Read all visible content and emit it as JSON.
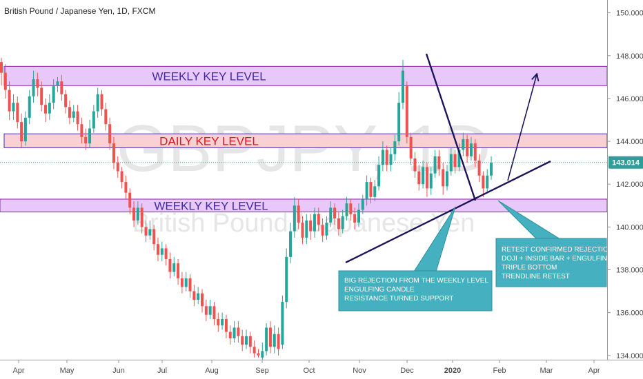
{
  "header": {
    "title": "British Pound / Japanese Yen, 1D, FXCM"
  },
  "watermark": {
    "symbol": "GBPJPY, 1D",
    "name": "British Pound / Japanese Yen"
  },
  "price_badge": {
    "value": "143.014",
    "color": "#2f9e9a"
  },
  "colors": {
    "up": "#26a69a",
    "down": "#ef5350",
    "weekly_fill": "#e8c8f8",
    "weekly_border": "#8e24aa",
    "daily_fill": "#f9d0d4",
    "daily_border": "#3f2faa",
    "line": "#1a1458",
    "callout": "#45b0c0"
  },
  "zones": [
    {
      "label": "WEEKLY KEY LEVEL",
      "kind": "weekly",
      "from": 146.6,
      "to": 147.5
    },
    {
      "label": "DAILY KEY LEVEL",
      "kind": "daily",
      "from": 143.7,
      "to": 144.35
    },
    {
      "label": "WEEKLY KEY LEVEL",
      "kind": "weekly",
      "from": 140.7,
      "to": 141.3
    }
  ],
  "callouts": [
    {
      "lines": [
        "BIG REJECTION FROM THE WEEKLY LEVEL",
        "ENGULFING CANDLE",
        "RESISTANCE TURNED SUPPORT"
      ]
    },
    {
      "lines": [
        "RETEST CONFIRMED REJECTION",
        "DOJI + INSIDE BAR + ENGULFING",
        "TRIPLE BOTTOM",
        "TRENDLINE RETEST"
      ]
    }
  ],
  "chart_data": {
    "type": "candlestick",
    "title": "British Pound / Japanese Yen, 1D, FXCM",
    "ylim": [
      133.8,
      150.6
    ],
    "y_ticks": [
      "134.000",
      "136.000",
      "138.000",
      "140.000",
      "142.000",
      "144.000",
      "146.000",
      "148.000",
      "150.000"
    ],
    "x_ticks": [
      "Apr",
      "May",
      "Jun",
      "Jul",
      "Aug",
      "Sep",
      "Oct",
      "Nov",
      "Dec",
      "2020",
      "Feb",
      "Mar",
      "Apr"
    ],
    "last_price": 143.014,
    "candles": [
      [
        147.7,
        147.2,
        147.9,
        146.6
      ],
      [
        147.2,
        146.4,
        147.6,
        146.0
      ],
      [
        146.4,
        145.4,
        146.8,
        145.0
      ],
      [
        145.4,
        145.8,
        146.2,
        145.0
      ],
      [
        145.8,
        144.9,
        146.1,
        144.6
      ],
      [
        144.9,
        144.0,
        145.3,
        143.7
      ],
      [
        144.0,
        145.1,
        145.4,
        143.8
      ],
      [
        145.1,
        146.1,
        146.4,
        144.8
      ],
      [
        146.1,
        146.9,
        147.3,
        145.8
      ],
      [
        146.9,
        146.5,
        147.2,
        146.1
      ],
      [
        146.5,
        145.7,
        146.8,
        145.4
      ],
      [
        145.7,
        145.3,
        146.0,
        144.9
      ],
      [
        145.3,
        145.8,
        146.2,
        145.0
      ],
      [
        145.8,
        146.6,
        146.9,
        145.5
      ],
      [
        146.6,
        146.8,
        147.0,
        146.3
      ],
      [
        146.8,
        146.2,
        147.1,
        145.9
      ],
      [
        146.2,
        145.6,
        146.4,
        145.3
      ],
      [
        145.6,
        145.1,
        145.9,
        144.8
      ],
      [
        145.1,
        145.4,
        145.7,
        144.9
      ],
      [
        145.4,
        144.8,
        145.7,
        144.5
      ],
      [
        144.8,
        144.2,
        145.1,
        143.9
      ],
      [
        144.2,
        143.9,
        144.6,
        143.6
      ],
      [
        143.9,
        144.6,
        145.0,
        143.7
      ],
      [
        144.6,
        145.4,
        145.7,
        144.4
      ],
      [
        145.4,
        146.2,
        146.5,
        145.1
      ],
      [
        146.2,
        145.5,
        146.4,
        145.2
      ],
      [
        145.5,
        144.8,
        145.8,
        144.5
      ],
      [
        144.8,
        143.9,
        145.1,
        143.6
      ],
      [
        143.9,
        143.0,
        144.2,
        142.7
      ],
      [
        143.0,
        142.6,
        143.3,
        142.3
      ],
      [
        142.6,
        142.1,
        142.8,
        141.8
      ],
      [
        142.1,
        141.6,
        142.4,
        141.3
      ],
      [
        141.6,
        140.9,
        141.8,
        140.6
      ],
      [
        140.9,
        140.3,
        141.2,
        140.0
      ],
      [
        140.3,
        140.9,
        141.2,
        140.1
      ],
      [
        140.9,
        140.0,
        141.1,
        139.7
      ],
      [
        140.0,
        139.6,
        140.3,
        139.3
      ],
      [
        139.6,
        139.9,
        140.3,
        139.4
      ],
      [
        139.9,
        139.2,
        140.1,
        138.9
      ],
      [
        139.2,
        138.7,
        139.5,
        138.4
      ],
      [
        138.7,
        139.0,
        139.3,
        138.4
      ],
      [
        139.0,
        138.5,
        139.2,
        138.2
      ],
      [
        138.5,
        137.9,
        138.8,
        137.6
      ],
      [
        137.9,
        138.3,
        138.6,
        137.7
      ],
      [
        138.3,
        137.6,
        138.5,
        137.3
      ],
      [
        137.6,
        137.2,
        137.9,
        136.9
      ],
      [
        137.2,
        137.6,
        137.9,
        137.0
      ],
      [
        137.6,
        137.0,
        137.8,
        136.7
      ],
      [
        137.0,
        136.6,
        137.3,
        136.3
      ],
      [
        136.6,
        136.9,
        137.2,
        136.4
      ],
      [
        136.9,
        136.3,
        137.1,
        136.0
      ],
      [
        136.3,
        135.9,
        136.6,
        135.6
      ],
      [
        135.9,
        136.3,
        136.6,
        135.7
      ],
      [
        136.3,
        135.7,
        136.5,
        135.4
      ],
      [
        135.7,
        135.4,
        136.0,
        135.1
      ],
      [
        135.4,
        135.7,
        136.0,
        135.2
      ],
      [
        135.7,
        135.1,
        135.9,
        134.8
      ],
      [
        135.1,
        134.8,
        135.4,
        134.5
      ],
      [
        134.8,
        135.3,
        135.6,
        134.6
      ],
      [
        135.3,
        134.9,
        135.6,
        134.6
      ],
      [
        134.9,
        134.5,
        135.2,
        134.2
      ],
      [
        134.5,
        134.9,
        135.2,
        134.3
      ],
      [
        134.9,
        134.4,
        135.1,
        134.1
      ],
      [
        134.4,
        134.1,
        134.7,
        133.9
      ],
      [
        134.1,
        134.0,
        134.3,
        133.9
      ],
      [
        133.9,
        134.2,
        134.6,
        133.8
      ],
      [
        134.2,
        135.3,
        135.5,
        134.0
      ],
      [
        135.3,
        134.4,
        135.6,
        134.1
      ],
      [
        134.4,
        135.0,
        135.4,
        134.1
      ],
      [
        135.0,
        134.3,
        135.3,
        134.0
      ],
      [
        134.5,
        136.5,
        136.8,
        134.3
      ],
      [
        136.5,
        138.6,
        139.0,
        136.2
      ],
      [
        138.6,
        139.8,
        140.2,
        138.3
      ],
      [
        139.8,
        141.0,
        141.4,
        139.5
      ],
      [
        141.0,
        140.2,
        141.3,
        139.9
      ],
      [
        140.2,
        139.5,
        140.5,
        139.2
      ],
      [
        139.5,
        140.3,
        140.6,
        139.2
      ],
      [
        140.3,
        139.8,
        140.6,
        139.4
      ],
      [
        139.8,
        140.6,
        140.9,
        139.5
      ],
      [
        140.6,
        140.1,
        140.9,
        139.8
      ],
      [
        140.1,
        139.6,
        140.4,
        139.3
      ],
      [
        139.6,
        140.2,
        140.5,
        139.4
      ],
      [
        140.2,
        140.9,
        141.2,
        140.0
      ],
      [
        140.9,
        140.4,
        141.1,
        140.1
      ],
      [
        140.4,
        139.9,
        140.7,
        139.6
      ],
      [
        139.9,
        140.5,
        140.8,
        139.7
      ],
      [
        140.5,
        141.1,
        141.4,
        140.3
      ],
      [
        141.1,
        140.6,
        141.3,
        140.3
      ],
      [
        140.6,
        140.2,
        140.9,
        139.9
      ],
      [
        140.2,
        140.8,
        141.1,
        140.0
      ],
      [
        140.8,
        141.3,
        141.5,
        140.6
      ],
      [
        141.3,
        142.1,
        142.4,
        141.0
      ],
      [
        142.1,
        141.4,
        142.3,
        141.1
      ],
      [
        141.4,
        141.9,
        142.2,
        141.2
      ],
      [
        141.9,
        142.9,
        143.3,
        141.7
      ],
      [
        142.9,
        143.6,
        144.0,
        142.6
      ],
      [
        143.6,
        142.9,
        143.8,
        142.6
      ],
      [
        142.9,
        143.4,
        143.7,
        142.6
      ],
      [
        143.4,
        144.0,
        144.3,
        143.1
      ],
      [
        144.0,
        145.8,
        146.3,
        143.8
      ],
      [
        145.8,
        147.3,
        147.8,
        145.5
      ],
      [
        146.6,
        144.2,
        146.8,
        143.9
      ],
      [
        144.2,
        143.2,
        144.4,
        142.9
      ],
      [
        143.2,
        142.6,
        143.5,
        142.3
      ],
      [
        142.6,
        142.0,
        142.9,
        141.7
      ],
      [
        142.0,
        142.8,
        143.1,
        141.8
      ],
      [
        142.8,
        141.8,
        143.0,
        141.4
      ],
      [
        141.8,
        142.5,
        142.8,
        141.5
      ],
      [
        142.5,
        143.3,
        143.6,
        142.3
      ],
      [
        143.3,
        142.7,
        143.6,
        142.4
      ],
      [
        142.7,
        141.9,
        143.0,
        141.5
      ],
      [
        141.9,
        142.6,
        142.9,
        141.7
      ],
      [
        142.6,
        143.4,
        143.7,
        142.4
      ],
      [
        143.4,
        142.8,
        143.6,
        142.5
      ],
      [
        142.8,
        143.6,
        143.9,
        142.6
      ],
      [
        143.6,
        144.1,
        144.4,
        143.3
      ],
      [
        144.1,
        143.3,
        144.3,
        143.0
      ],
      [
        143.3,
        143.9,
        144.2,
        143.1
      ],
      [
        143.9,
        143.1,
        144.1,
        142.8
      ],
      [
        143.1,
        142.4,
        143.4,
        142.1
      ],
      [
        142.4,
        141.8,
        142.6,
        141.4
      ],
      [
        141.8,
        142.4,
        142.7,
        141.6
      ],
      [
        142.4,
        143.0,
        143.3,
        142.2
      ]
    ]
  }
}
